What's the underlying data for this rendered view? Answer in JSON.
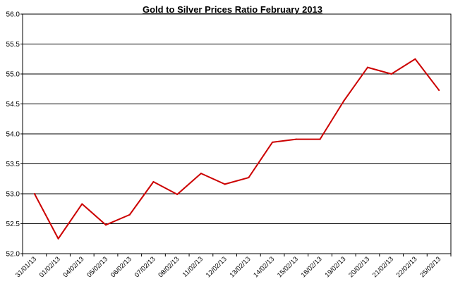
{
  "chart_data": {
    "type": "line",
    "title": "Gold to Silver Prices Ratio February  2013",
    "xlabel": "",
    "ylabel": "",
    "ylim": [
      52.0,
      56.0
    ],
    "yticks": [
      "52.0",
      "52.5",
      "53.0",
      "53.5",
      "54.0",
      "54.5",
      "55.0",
      "55.5",
      "56.0"
    ],
    "grid": true,
    "legend": "none",
    "line_color": "#cc0000",
    "categories": [
      "31/01/13",
      "01/02/13",
      "04/02/13",
      "05/02/13",
      "06/02/13",
      "07/02/13",
      "08/02/13",
      "11/02/13",
      "12/02/13",
      "13/02/13",
      "14/02/13",
      "15/02/13",
      "18/02/13",
      "19/02/13",
      "20/02/13",
      "21/02/13",
      "22/02/13",
      "25/02/13"
    ],
    "values": [
      53.0,
      52.25,
      52.83,
      52.48,
      52.65,
      53.2,
      52.99,
      53.34,
      53.16,
      53.27,
      53.86,
      53.91,
      53.91,
      54.55,
      55.11,
      55.0,
      55.25,
      54.73
    ]
  }
}
